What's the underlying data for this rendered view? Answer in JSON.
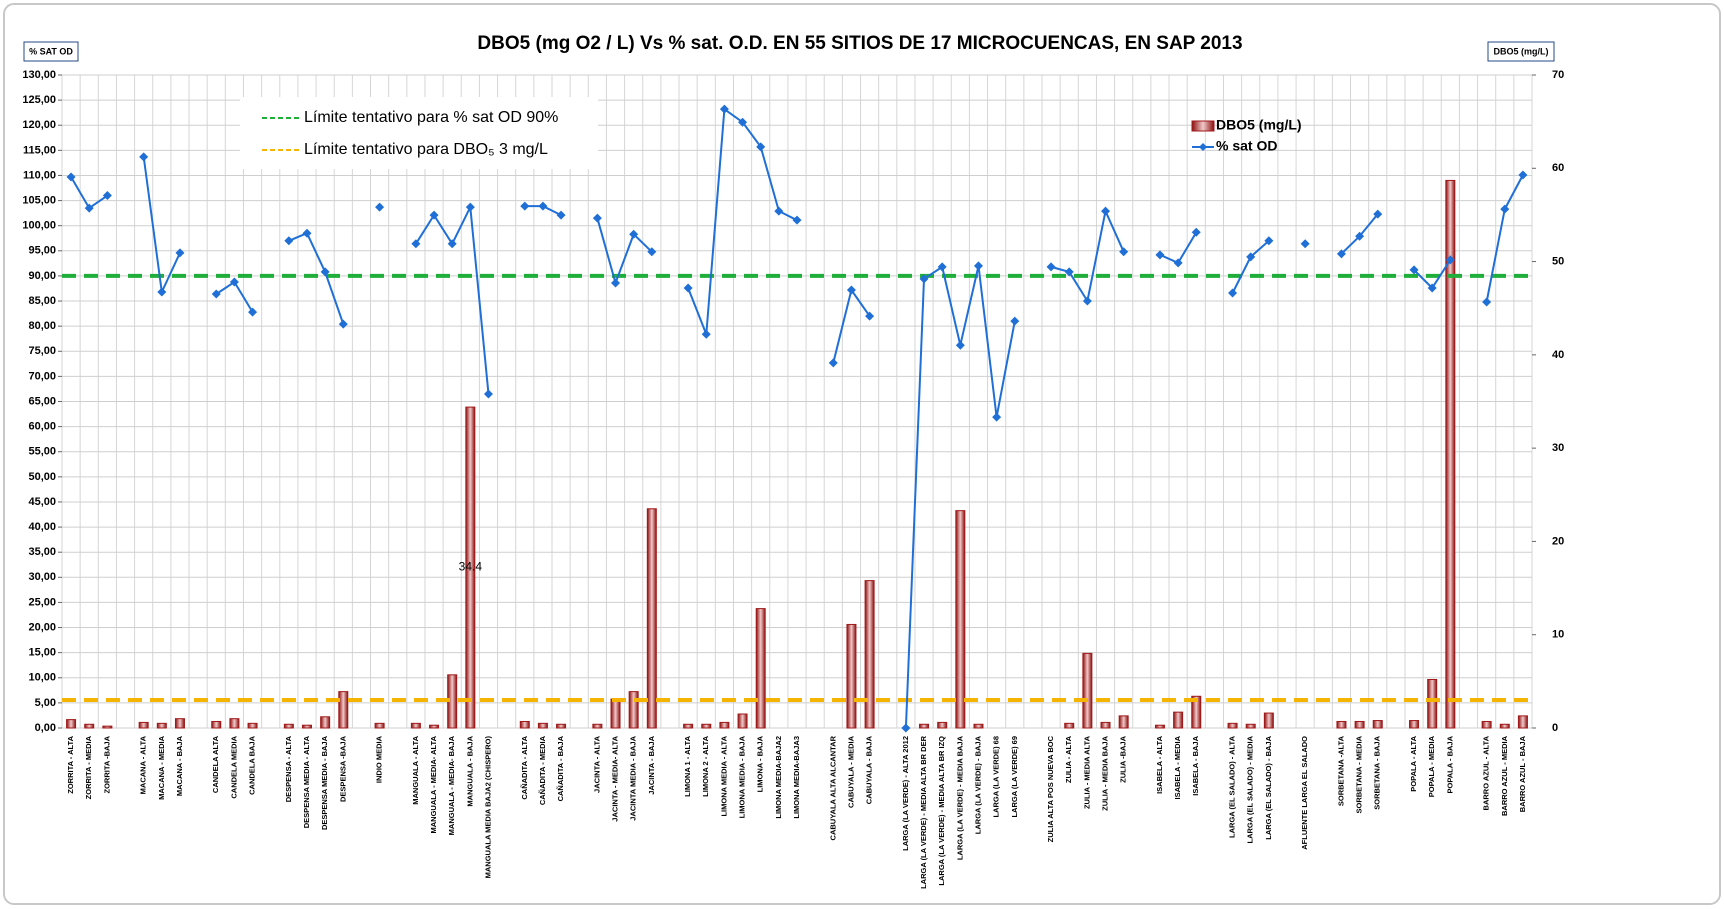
{
  "chart_data": {
    "type": "bar_line",
    "title": "DBO5 (mg O2 / L) Vs % sat. O.D.  EN 55 SITIOS DE 17 MICROCUENCAS,  EN SAP 2013",
    "y_axis_label": "% SAT OD",
    "y2_axis_label": "DBO5 (mg/L)",
    "categories": [
      "ZORRITA - ALTA",
      "ZORRITA - MEDIA",
      "ZORRITA -BAJA",
      null,
      "MACANA - ALTA",
      "MACANA - MEDIA",
      "MACANA - BAJA",
      null,
      "CANDELA ALTA",
      "CANDELA MEDIA",
      "CANDELA BAJA",
      null,
      "DESPENSA - ALTA",
      "DESPENSA MEDIA - ALTA",
      "DESPENSA MEDIA - BAJA",
      "DESPENSA -BAJA",
      null,
      "INDIO MEDIA",
      null,
      "MANGUALA - ALTA",
      "MANGUALA - MEDIA- ALTA",
      "MANGUALA - MEDIA- BAJA",
      "MANGUALA - BAJA",
      "MANGUALA MEDIA BAJA2 (CHISPERO)",
      null,
      "CAÑADITA - ALTA",
      "CAÑADITA - MEDIA",
      "CAÑADITA - BAJA",
      null,
      "JACINTA - ALTA",
      "JACINTA - MEDIA- ALTA",
      "JACINTA MEDIA - BAJA",
      "JACINTA - BAJA",
      null,
      "LIMONA 1 - ALTA",
      "LIMONA 2 - ALTA",
      "LIMONA MEDIA - ALTA",
      "LIMONA MEDIA - BAJA",
      "LIMONA - BAJA",
      "LIMONA MEDIA-BAJA2",
      "LIMONA MEDIA-BAJA3",
      null,
      "CABUYALA ALTA ALCANTAR",
      "CABUYALA - MEDIA",
      "CABUYALA - BAJA",
      null,
      "LARGA (LA VERDE) - ALTA 2012",
      "LARGA (LA VERDE) - MEDIA ALTA BR DER",
      "LARGA (LA VERDE) - MEDIA ALTA BR IZQ",
      "LARGA (LA VERDE) - MEDIA BAJA",
      "LARGA (LA VERDE) - BAJA",
      "LARGA (LA VERDE) 68",
      "LARGA (LA VERDE) 69",
      null,
      "ZULIA ALTA POS NUEVA BOC",
      "ZULIA - ALTA",
      "ZULIA - MEDIA ALTA",
      "ZULIA - MEDIA BAJA",
      "ZULIA -BAJA",
      null,
      "ISABELA - ALTA",
      "ISABELA - MEDIA",
      "ISABELA - BAJA",
      null,
      "LARGA (EL SALADO) - ALTA",
      "LARGA (EL SALADO) - MEDIA",
      "LARGA (EL SALADO) - BAJA",
      null,
      "AFLUENTE LARGA EL SALADO",
      null,
      "SORBETANA -ALTA",
      "SORBETANA - MEDIA",
      "SORBETANA - BAJA",
      null,
      "POPALA - ALTA",
      "POPALA - MEDIA",
      "POPALA - BAJA",
      null,
      "BARRO AZUL - ALTA",
      "BARRO AZUL - MEDIA",
      "BARRO AZUL - BAJA"
    ],
    "series": [
      {
        "name": "DBO5 (mg/L)",
        "type": "bar",
        "axis": "y2",
        "color": "#a01818",
        "values": [
          0.9,
          0.4,
          0.2,
          null,
          0.6,
          0.5,
          1.0,
          null,
          0.7,
          1.0,
          0.5,
          null,
          0.4,
          0.3,
          1.2,
          3.9,
          null,
          0.5,
          null,
          0.5,
          0.3,
          5.7,
          34.4,
          null,
          null,
          0.7,
          0.5,
          0.4,
          null,
          0.4,
          3.1,
          3.9,
          23.5,
          null,
          0.4,
          0.4,
          0.6,
          1.5,
          12.8,
          null,
          null,
          null,
          null,
          11.1,
          15.8,
          null,
          null,
          0.4,
          0.6,
          23.3,
          0.4,
          null,
          null,
          null,
          null,
          0.5,
          8.0,
          0.6,
          1.3,
          null,
          0.3,
          1.7,
          3.4,
          null,
          0.5,
          0.4,
          1.6,
          null,
          null,
          null,
          0.7,
          0.7,
          0.8,
          null,
          0.8,
          5.2,
          58.7,
          null,
          0.7,
          0.4,
          1.3
        ],
        "value_labels": [
          null,
          null,
          null,
          null,
          null,
          null,
          null,
          null,
          null,
          null,
          null,
          null,
          null,
          null,
          null,
          null,
          null,
          null,
          null,
          null,
          null,
          null,
          "34.4",
          null,
          null,
          null,
          null,
          null,
          null,
          null,
          null,
          null,
          null,
          null,
          null,
          null,
          null,
          null,
          null,
          null,
          null,
          null,
          null,
          null,
          null,
          null,
          null,
          null,
          null,
          null,
          null,
          null,
          null,
          null,
          null,
          null,
          null,
          null,
          null,
          null,
          null,
          null,
          null,
          null,
          null,
          null,
          null,
          null,
          null,
          null,
          null,
          null,
          null,
          null,
          null,
          null,
          null,
          null,
          null,
          null,
          null
        ]
      },
      {
        "name": "% sat OD",
        "type": "line",
        "axis": "y",
        "color": "#1f6fd6",
        "values": [
          109.7,
          103.5,
          106.0,
          null,
          113.7,
          86.8,
          94.6,
          null,
          86.4,
          88.8,
          82.8,
          null,
          97.0,
          98.5,
          90.8,
          80.4,
          null,
          103.7,
          null,
          96.4,
          102.1,
          96.4,
          103.7,
          66.5,
          null,
          103.9,
          103.9,
          102.1,
          null,
          101.5,
          88.6,
          98.3,
          94.8,
          null,
          87.6,
          78.4,
          123.2,
          120.6,
          115.7,
          102.9,
          101.1,
          null,
          72.7,
          87.2,
          82.0,
          null,
          0,
          89.4,
          91.8,
          76.2,
          92.0,
          61.9,
          81.0,
          null,
          91.8,
          90.8,
          85.0,
          102.9,
          94.8,
          null,
          94.2,
          92.6,
          98.7,
          null,
          86.6,
          93.8,
          97.0,
          null,
          96.4,
          null,
          94.4,
          97.9,
          102.3,
          null,
          91.2,
          87.6,
          93.2,
          null,
          84.8,
          103.3,
          110.1
        ]
      }
    ],
    "reference_lines": [
      {
        "label": "Límite tentativo para % sat OD 90%",
        "value": 90,
        "axis": "y",
        "color": "#1fae3a"
      },
      {
        "label": "Límite tentativo para DBO₅  3 mg/L",
        "value": 3,
        "axis": "y2",
        "color": "#f5b400"
      }
    ],
    "ylim": [
      0,
      130
    ],
    "yticks": [
      {
        "value": 0,
        "label": "0,00"
      },
      {
        "value": 5,
        "label": "5,00"
      },
      {
        "value": 10,
        "label": "10,00"
      },
      {
        "value": 15,
        "label": "15,00"
      },
      {
        "value": 20,
        "label": "20,00"
      },
      {
        "value": 25,
        "label": "25,00"
      },
      {
        "value": 30,
        "label": "30,00"
      },
      {
        "value": 35,
        "label": "35,00"
      },
      {
        "value": 40,
        "label": "40,00"
      },
      {
        "value": 45,
        "label": "45,00"
      },
      {
        "value": 50,
        "label": "50,00"
      },
      {
        "value": 55,
        "label": "55,00"
      },
      {
        "value": 60,
        "label": "60,00"
      },
      {
        "value": 65,
        "label": "65,00"
      },
      {
        "value": 70,
        "label": "70,00"
      },
      {
        "value": 75,
        "label": "75,00"
      },
      {
        "value": 80,
        "label": "80,00"
      },
      {
        "value": 85,
        "label": "85,00"
      },
      {
        "value": 90,
        "label": "90,00"
      },
      {
        "value": 95,
        "label": "95,00"
      },
      {
        "value": 100,
        "label": "100,00"
      },
      {
        "value": 105,
        "label": "105,00"
      },
      {
        "value": 110,
        "label": "110,00"
      },
      {
        "value": 115,
        "label": "115,00"
      },
      {
        "value": 120,
        "label": "120,00"
      },
      {
        "value": 125,
        "label": "125,00"
      },
      {
        "value": 130,
        "label": "130,00"
      }
    ],
    "y2lim": [
      0,
      70
    ],
    "y2ticks": [
      0,
      10,
      20,
      30,
      40,
      50,
      60,
      70
    ],
    "grid": true,
    "legend": "upper right"
  }
}
